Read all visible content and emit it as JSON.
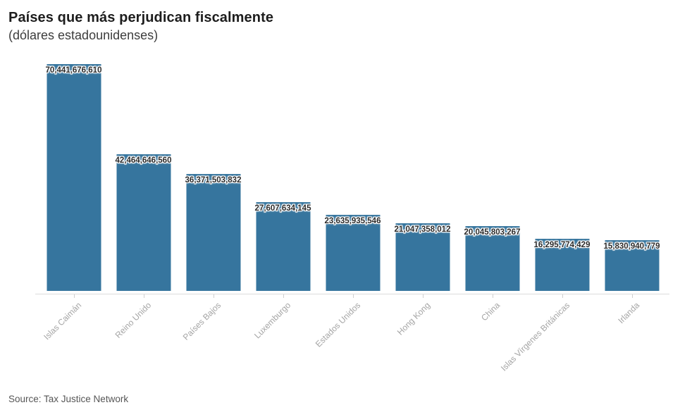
{
  "header": {
    "title": "Países que más perjudican fiscalmente",
    "subtitle": "(dólares estadounidenses)"
  },
  "footer": {
    "source": "Source: Tax Justice Network"
  },
  "colors": {
    "bar": "#36759e",
    "value_label_text": "#2b2b2b",
    "value_label_halo": "#ffffff",
    "axis_line": "#dcdcdc",
    "tick": "#cfcfcf",
    "axis_label": "#a5a5a5",
    "title": "#1d1d1d",
    "subtitle": "#3d3d3d",
    "source": "#565656"
  },
  "chart_data": {
    "type": "bar",
    "title": "Países que más perjudican fiscalmente",
    "subtitle": "(dólares estadounidenses)",
    "categories": [
      "Islas Caimán",
      "Reino Unido",
      "Países Bajos",
      "Luxemburgo",
      "Estados Unidos",
      "Hong Kong",
      "China",
      "Islas Vírgenes Británicas",
      "Irlanda"
    ],
    "values": [
      70441676610,
      42464646560,
      36371503832,
      27607634145,
      23635935546,
      21047358012,
      20045803267,
      16295774429,
      15830940779
    ],
    "value_labels": [
      "70,441,676,610",
      "42,464,646,560",
      "36,371,503,832",
      "27,607,634,145",
      "23,635,935,546",
      "21,047,358,012",
      "20,045,803,267",
      "16,295,774,429",
      "15,830,940,779"
    ],
    "xlabel": "",
    "ylabel": "",
    "ylim": [
      0,
      70441676610
    ],
    "grid": false,
    "legend": false,
    "bar_orientation": "vertical",
    "x_tick_rotation_deg": 45,
    "source": "Source: Tax Justice Network"
  }
}
